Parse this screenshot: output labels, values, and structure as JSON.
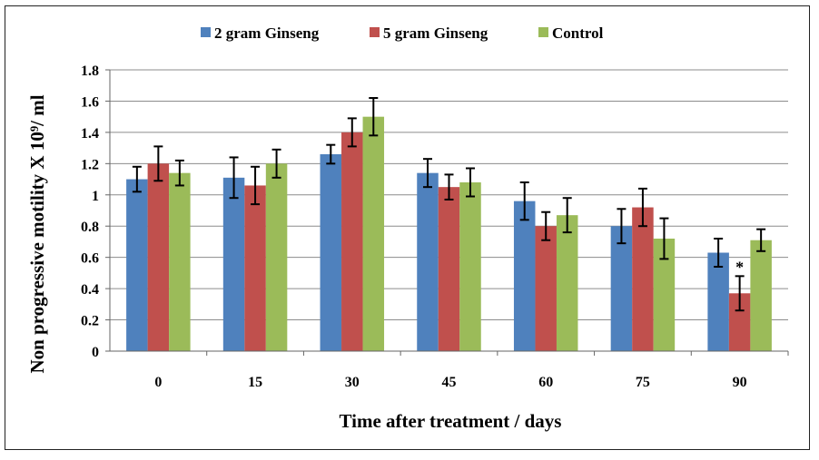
{
  "chart_data": {
    "type": "bar",
    "xlabel": "Time after treatment / days",
    "ylabel": "Non progressive motility X 10⁹/ ml",
    "categories": [
      "0",
      "15",
      "30",
      "45",
      "60",
      "75",
      "90"
    ],
    "ylim": [
      0,
      1.8
    ],
    "yticks": [
      "0",
      "0.2",
      "0.4",
      "0.6",
      "0.8",
      "1",
      "1.2",
      "1.4",
      "1.6",
      "1.8"
    ],
    "grid": true,
    "legend_position": "top",
    "series": [
      {
        "name": "2 gram Ginseng",
        "color": "#4F81BD",
        "values": [
          1.1,
          1.11,
          1.26,
          1.14,
          0.96,
          0.8,
          0.63
        ],
        "errors": [
          0.08,
          0.13,
          0.06,
          0.09,
          0.12,
          0.11,
          0.09
        ]
      },
      {
        "name": "5 gram Ginseng",
        "color": "#C0504D",
        "values": [
          1.2,
          1.06,
          1.4,
          1.05,
          0.8,
          0.92,
          0.37
        ],
        "errors": [
          0.11,
          0.12,
          0.09,
          0.08,
          0.09,
          0.12,
          0.11
        ]
      },
      {
        "name": "Control",
        "color": "#9BBB59",
        "values": [
          1.14,
          1.2,
          1.5,
          1.08,
          0.87,
          0.72,
          0.71
        ],
        "errors": [
          0.08,
          0.09,
          0.12,
          0.09,
          0.11,
          0.13,
          0.07
        ]
      }
    ],
    "annotations": [
      {
        "text": "*",
        "category": "90",
        "series": "5 gram Ginseng"
      }
    ]
  }
}
